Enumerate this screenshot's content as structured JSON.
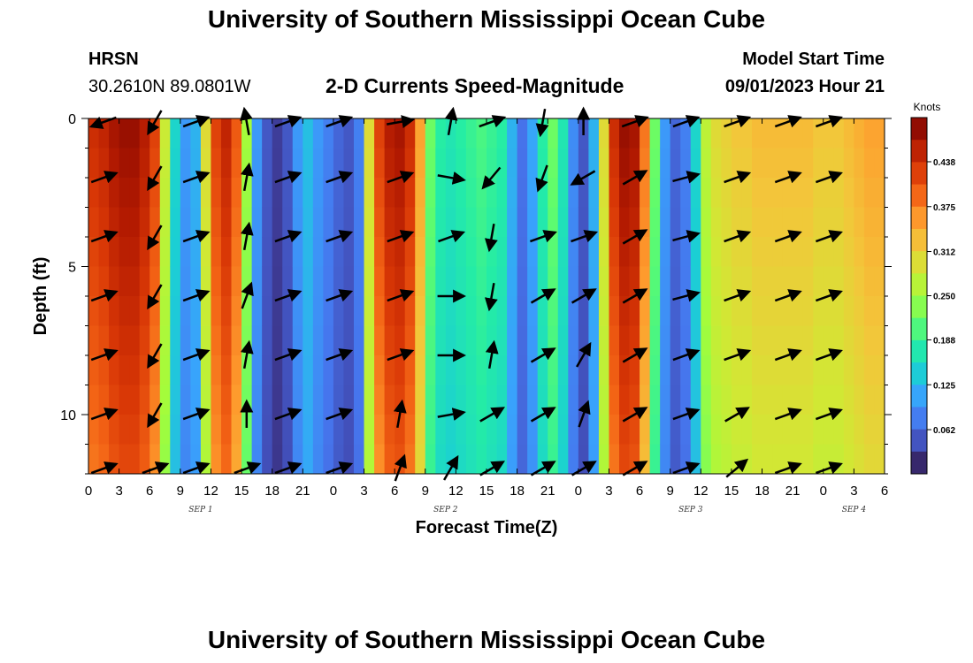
{
  "header": {
    "title": "University of Southern Mississippi Ocean Cube",
    "station": "HRSN",
    "coords": "30.2610N  89.0801W",
    "subtitle": "2-D Currents Speed-Magnitude",
    "model_label": "Model Start Time",
    "model_time": "09/01/2023 Hour 21"
  },
  "footer": {
    "title": "University of Southern Mississippi Ocean Cube"
  },
  "colorbar": {
    "unit": "Knots",
    "ticks": [
      "0.438",
      "0.375",
      "0.312",
      "0.250",
      "0.188",
      "0.125",
      "0.062"
    ],
    "tick_values": [
      0.438,
      0.375,
      0.312,
      0.25,
      0.188,
      0.125,
      0.062
    ],
    "range": [
      0,
      0.5
    ],
    "colors": [
      "#30123b",
      "#4145ab",
      "#4675ed",
      "#39a2fc",
      "#1bcfd4",
      "#24eca6",
      "#61fc6c",
      "#a4fc3b",
      "#d1e834",
      "#f3c63a",
      "#fe9b2d",
      "#f36315",
      "#d93806",
      "#b11901",
      "#7a0402"
    ]
  },
  "chart_data": {
    "type": "heatmap",
    "title": "2-D Currents Speed-Magnitude",
    "xlabel": "Forecast Time(Z)",
    "ylabel": "Depth (ft)",
    "xlim": [
      0,
      78
    ],
    "ylim": [
      0,
      12
    ],
    "x_ticks": [
      0,
      3,
      6,
      9,
      12,
      15,
      18,
      21,
      24,
      27,
      30,
      33,
      36,
      39,
      42,
      45,
      48,
      51,
      54,
      57,
      60,
      63,
      66,
      69,
      72,
      75,
      78
    ],
    "x_tick_labels": [
      "0",
      "3",
      "6",
      "9",
      "12",
      "15",
      "18",
      "21",
      "0",
      "3",
      "6",
      "9",
      "12",
      "15",
      "18",
      "21",
      "0",
      "3",
      "6",
      "9",
      "12",
      "15",
      "18",
      "21",
      "0",
      "3",
      "6"
    ],
    "y_ticks": [
      0,
      5,
      10
    ],
    "y_tick_labels": [
      "0",
      "5",
      "10"
    ],
    "day_labels": [
      {
        "label": "SEP 1",
        "x": 11
      },
      {
        "label": "SEP 2",
        "x": 35
      },
      {
        "label": "SEP 3",
        "x": 59
      },
      {
        "label": "SEP 4",
        "x": 75
      }
    ],
    "speed_profile_hours": [
      0,
      1,
      2,
      3,
      4,
      5,
      6,
      7,
      8,
      9,
      10,
      11,
      12,
      13,
      14,
      15,
      16,
      17,
      18,
      19,
      20,
      21,
      22,
      23,
      24,
      25,
      26,
      27,
      28,
      29,
      30,
      31,
      32,
      33,
      34,
      35,
      36,
      37,
      38,
      39,
      40,
      41,
      42,
      43,
      44,
      45,
      46,
      47,
      48,
      49,
      50,
      51,
      52,
      53,
      54,
      55,
      56,
      57,
      58,
      59,
      60,
      61,
      62,
      63,
      64,
      65,
      66,
      67,
      68,
      69,
      70,
      71,
      72,
      73,
      74,
      75,
      76,
      77
    ],
    "speed_profile_knots": [
      0.44,
      0.45,
      0.47,
      0.48,
      0.48,
      0.46,
      0.42,
      0.28,
      0.15,
      0.1,
      0.12,
      0.3,
      0.42,
      0.45,
      0.4,
      0.25,
      0.1,
      0.05,
      0.03,
      0.05,
      0.1,
      0.13,
      0.1,
      0.08,
      0.06,
      0.05,
      0.08,
      0.3,
      0.42,
      0.46,
      0.47,
      0.44,
      0.35,
      0.22,
      0.18,
      0.17,
      0.18,
      0.19,
      0.2,
      0.19,
      0.18,
      0.12,
      0.07,
      0.11,
      0.18,
      0.22,
      0.17,
      0.09,
      0.05,
      0.12,
      0.3,
      0.44,
      0.48,
      0.47,
      0.38,
      0.22,
      0.1,
      0.06,
      0.08,
      0.15,
      0.27,
      0.3,
      0.31,
      0.32,
      0.32,
      0.33,
      0.33,
      0.33,
      0.33,
      0.33,
      0.33,
      0.32,
      0.32,
      0.32,
      0.33,
      0.34,
      0.35,
      0.35
    ],
    "depth_factor_note": "speed decreases slightly with depth; values in knots",
    "vector_rows_depth_ft": [
      0,
      2,
      4,
      6,
      8,
      10,
      12
    ],
    "vector_cols_hour": [
      0,
      5,
      9,
      14,
      18,
      23,
      29,
      34,
      38,
      43,
      47,
      52,
      57,
      62,
      67,
      71
    ],
    "vector_direction_deg": [
      [
        200,
        240,
        20,
        100,
        20,
        20,
        10,
        80,
        20,
        260,
        90,
        20,
        20,
        20,
        20,
        20
      ],
      [
        20,
        240,
        20,
        80,
        20,
        20,
        20,
        350,
        230,
        250,
        210,
        30,
        15,
        20,
        20,
        20
      ],
      [
        20,
        240,
        20,
        80,
        20,
        20,
        20,
        20,
        260,
        20,
        20,
        30,
        15,
        20,
        20,
        20
      ],
      [
        20,
        240,
        20,
        70,
        20,
        20,
        20,
        0,
        260,
        30,
        30,
        30,
        15,
        20,
        20,
        20
      ],
      [
        20,
        240,
        20,
        80,
        20,
        20,
        20,
        0,
        80,
        30,
        60,
        30,
        20,
        20,
        20,
        20
      ],
      [
        20,
        240,
        20,
        90,
        20,
        20,
        80,
        10,
        30,
        30,
        70,
        30,
        20,
        30,
        20,
        20
      ],
      [
        20,
        20,
        20,
        20,
        20,
        20,
        70,
        60,
        30,
        30,
        30,
        30,
        20,
        40,
        20,
        20
      ]
    ]
  }
}
